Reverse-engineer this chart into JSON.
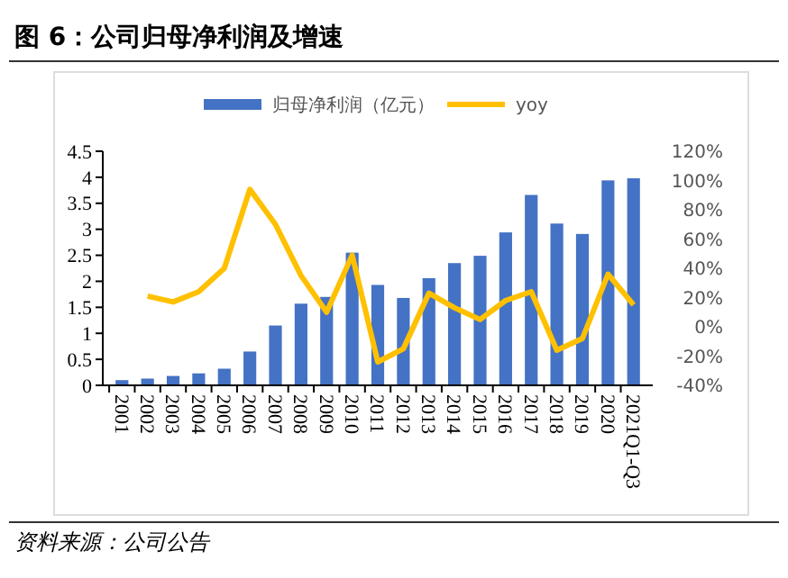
{
  "chart_data": {
    "type": "bar",
    "title": "图 6：公司归母净利润及增速",
    "categories": [
      "2001",
      "2002",
      "2003",
      "2004",
      "2005",
      "2006",
      "2007",
      "2008",
      "2009",
      "2010",
      "2011",
      "2012",
      "2013",
      "2014",
      "2015",
      "2016",
      "2017",
      "2018",
      "2019",
      "2020",
      "2021Q1-Q3"
    ],
    "series": [
      {
        "name": "归母净利润（亿元）",
        "color": "#4472c4",
        "values": [
          0.1,
          0.13,
          0.18,
          0.23,
          0.32,
          0.65,
          1.15,
          1.57,
          1.7,
          2.55,
          1.93,
          1.68,
          2.06,
          2.35,
          2.49,
          2.94,
          3.66,
          3.11,
          2.91,
          3.94,
          3.98
        ]
      },
      {
        "name": "yoy",
        "type": "line",
        "axis": "y2",
        "color": "#ffc000",
        "values": [
          null,
          21,
          17,
          24,
          40,
          94,
          70,
          35,
          10,
          49,
          -24,
          -15,
          23,
          13,
          5,
          18,
          24,
          -16,
          -8,
          36,
          15
        ]
      }
    ],
    "ylim": [
      0,
      4.5
    ],
    "yticks": [
      0,
      0.5,
      1,
      1.5,
      2,
      2.5,
      3,
      3.5,
      4,
      4.5
    ],
    "y2lim": [
      -40,
      120
    ],
    "y2ticks": [
      {
        "value": -40,
        "label": "-40%"
      },
      {
        "value": -20,
        "label": "-20%"
      },
      {
        "value": 0,
        "label": "0%"
      },
      {
        "value": 20,
        "label": "20%"
      },
      {
        "value": 40,
        "label": "40%"
      },
      {
        "value": 60,
        "label": "60%"
      },
      {
        "value": 80,
        "label": "80%"
      },
      {
        "value": 100,
        "label": "100%"
      },
      {
        "value": 120,
        "label": "120%"
      }
    ],
    "legend": "top",
    "grid": false,
    "marker": "none",
    "line_style": "solid",
    "annotations": [
      "资料来源：公司公告"
    ]
  }
}
